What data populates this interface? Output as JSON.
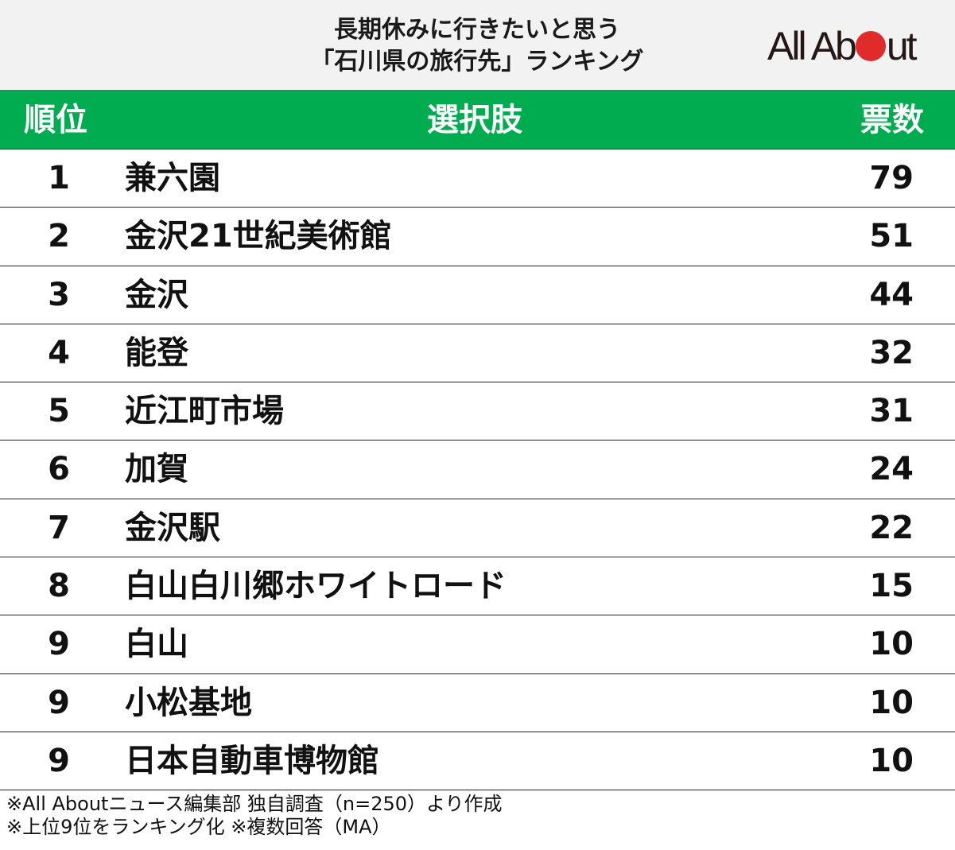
{
  "header": {
    "title_line1": "長期休みに行きたいと思う",
    "title_line2": "「石川県の旅行先」ランキング",
    "logo": {
      "before": "All Ab",
      "after": "ut",
      "dot_color": "#e02b2b"
    }
  },
  "table": {
    "columns": [
      "順位",
      "選択肢",
      "票数"
    ],
    "header_color": "#00ac4f",
    "rows": [
      {
        "rank": "1",
        "name": "兼六園",
        "votes": "79"
      },
      {
        "rank": "2",
        "name": "金沢21世紀美術館",
        "votes": "51"
      },
      {
        "rank": "3",
        "name": "金沢",
        "votes": "44"
      },
      {
        "rank": "4",
        "name": "能登",
        "votes": "32"
      },
      {
        "rank": "5",
        "name": "近江町市場",
        "votes": "31"
      },
      {
        "rank": "6",
        "name": "加賀",
        "votes": "24"
      },
      {
        "rank": "7",
        "name": "金沢駅",
        "votes": "22"
      },
      {
        "rank": "8",
        "name": "白山白川郷ホワイトロード",
        "votes": "15"
      },
      {
        "rank": "9",
        "name": "白山",
        "votes": "10"
      },
      {
        "rank": "9",
        "name": "小松基地",
        "votes": "10"
      },
      {
        "rank": "9",
        "name": "日本自動車博物館",
        "votes": "10"
      }
    ]
  },
  "footer": {
    "note1": "※All Aboutニュース編集部 独自調査（n=250）より作成",
    "note2": "※上位9位をランキング化 ※複数回答（MA）"
  },
  "chart_data": {
    "type": "table",
    "title": "長期休みに行きたいと思う「石川県の旅行先」ランキング",
    "columns": [
      "順位",
      "選択肢",
      "票数"
    ],
    "categories": [
      "兼六園",
      "金沢21世紀美術館",
      "金沢",
      "能登",
      "近江町市場",
      "加賀",
      "金沢駅",
      "白山白川郷ホワイトロード",
      "白山",
      "小松基地",
      "日本自動車博物館"
    ],
    "ranks": [
      1,
      2,
      3,
      4,
      5,
      6,
      7,
      8,
      9,
      9,
      9
    ],
    "values": [
      79,
      51,
      44,
      32,
      31,
      24,
      22,
      15,
      10,
      10,
      10
    ],
    "notes": [
      "※All Aboutニュース編集部 独自調査（n=250）より作成",
      "※上位9位をランキング化 ※複数回答（MA）"
    ]
  }
}
